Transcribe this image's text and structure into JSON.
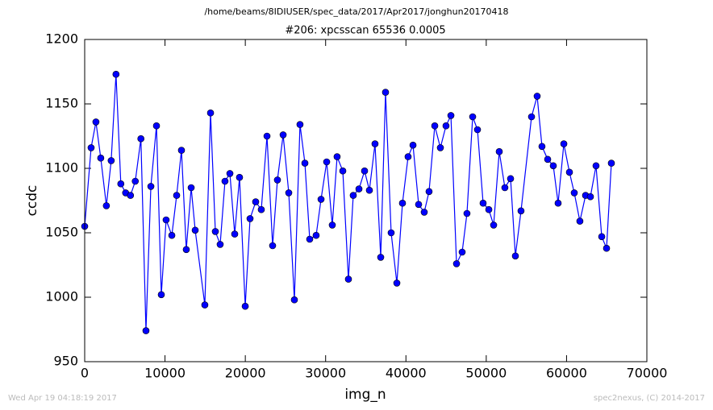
{
  "chart_data": {
    "type": "line",
    "suptitle": "/home/beams/8IDIUSER/spec_data/2017/Apr2017/jonghun20170418",
    "title": "#206: xpcsscan 65536 0.0005",
    "xlabel": "img_n",
    "ylabel": "ccdc",
    "footer_left": "Wed Apr 19 04:18:19 2017",
    "footer_right": "spec2nexus, (C) 2014-2017",
    "color": "#0000ff",
    "marker": "circle",
    "x": [
      0,
      800,
      1400,
      2000,
      2700,
      3300,
      3900,
      4500,
      5100,
      5700,
      6300,
      7000,
      7630,
      8240,
      8940,
      9540,
      10140,
      10850,
      11450,
      12050,
      12650,
      13260,
      13760,
      14960,
      15670,
      16270,
      16870,
      17470,
      18080,
      18680,
      19280,
      19990,
      20590,
      21290,
      21990,
      22700,
      23400,
      24000,
      24710,
      25410,
      26110,
      26810,
      27420,
      28020,
      28820,
      29430,
      30130,
      30830,
      31430,
      32140,
      32840,
      33440,
      34150,
      34850,
      35450,
      36150,
      36860,
      37460,
      38160,
      38870,
      39570,
      40270,
      40880,
      41580,
      42280,
      42880,
      43590,
      44290,
      44990,
      45600,
      46300,
      47000,
      47600,
      48310,
      48910,
      49610,
      50320,
      50920,
      51620,
      52320,
      53030,
      53630,
      54330,
      55640,
      56340,
      56940,
      57650,
      58350,
      58950,
      59660,
      60360,
      60960,
      61660,
      62370,
      62970,
      63670,
      64380,
      64980,
      65580
    ],
    "values": [
      1055,
      1116,
      1136,
      1108,
      1071,
      1106,
      1173,
      1088,
      1081,
      1079,
      1090,
      1123,
      974,
      1086,
      1133,
      1002,
      1060,
      1048,
      1079,
      1114,
      1037,
      1085,
      1052,
      994,
      1143,
      1051,
      1041,
      1090,
      1096,
      1049,
      1093,
      993,
      1061,
      1074,
      1068,
      1125,
      1040,
      1091,
      1126,
      1081,
      998,
      1134,
      1104,
      1045,
      1048,
      1076,
      1105,
      1056,
      1109,
      1098,
      1014,
      1079,
      1084,
      1098,
      1083,
      1119,
      1031,
      1159,
      1050,
      1011,
      1073,
      1109,
      1118,
      1072,
      1066,
      1082,
      1133,
      1116,
      1133,
      1141,
      1026,
      1035,
      1065,
      1140,
      1130,
      1073,
      1068,
      1056,
      1113,
      1085,
      1092,
      1032,
      1067,
      1140,
      1156,
      1117,
      1107,
      1102,
      1073,
      1119,
      1097,
      1081,
      1059,
      1079,
      1078,
      1102,
      1047,
      1038,
      1104
    ],
    "xlim": [
      0,
      70000
    ],
    "xticks": [
      0,
      10000,
      20000,
      30000,
      40000,
      50000,
      60000,
      70000
    ],
    "ylim": [
      950,
      1200
    ],
    "yticks": [
      950,
      1000,
      1050,
      1100,
      1150,
      1200
    ],
    "grid": false
  }
}
